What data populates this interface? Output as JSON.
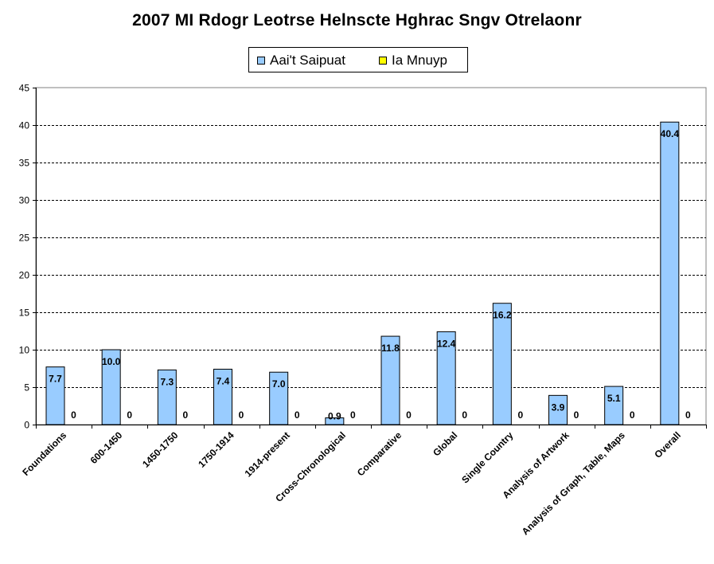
{
  "chart_data": {
    "type": "bar",
    "title": "2007 MI Rdogr Leotrse Helnscte Hghrac Sngv Otrelaonr",
    "xlabel": "",
    "ylabel": "",
    "ylim": [
      0,
      45
    ],
    "yticks": [
      0,
      5,
      10,
      15,
      20,
      25,
      30,
      35,
      40,
      45
    ],
    "categories": [
      "Foundations",
      "600-1450",
      "1450-1750",
      "1750-1914",
      "1914-present",
      "Cross-Chronological",
      "Comparative",
      "Global",
      "Single Country",
      "Analysis of Artwork",
      "Analysis of Graph, Table, Maps",
      "Overall"
    ],
    "series": [
      {
        "name": "Aai't Saipuat",
        "color": "#99ccff",
        "values": [
          7.7,
          10.0,
          7.3,
          7.4,
          7.0,
          0.9,
          11.8,
          12.4,
          16.2,
          3.9,
          5.1,
          40.4
        ],
        "labels": [
          "7.7",
          "10.0",
          "7.3",
          "7.4",
          "7.0",
          "0.9",
          "11.8",
          "12.4",
          "16.2",
          "3.9",
          "5.1",
          "40.4"
        ]
      },
      {
        "name": "Ia Mnuyp",
        "color": "#ffff00",
        "values": [
          0,
          0,
          0,
          0,
          0,
          0,
          0,
          0,
          0,
          0,
          0,
          0
        ],
        "labels": [
          "0",
          "0",
          "0",
          "0",
          "0",
          "0",
          "0",
          "0",
          "0",
          "0",
          "0",
          "0"
        ]
      }
    ],
    "grid": true,
    "legend_position": "top"
  }
}
